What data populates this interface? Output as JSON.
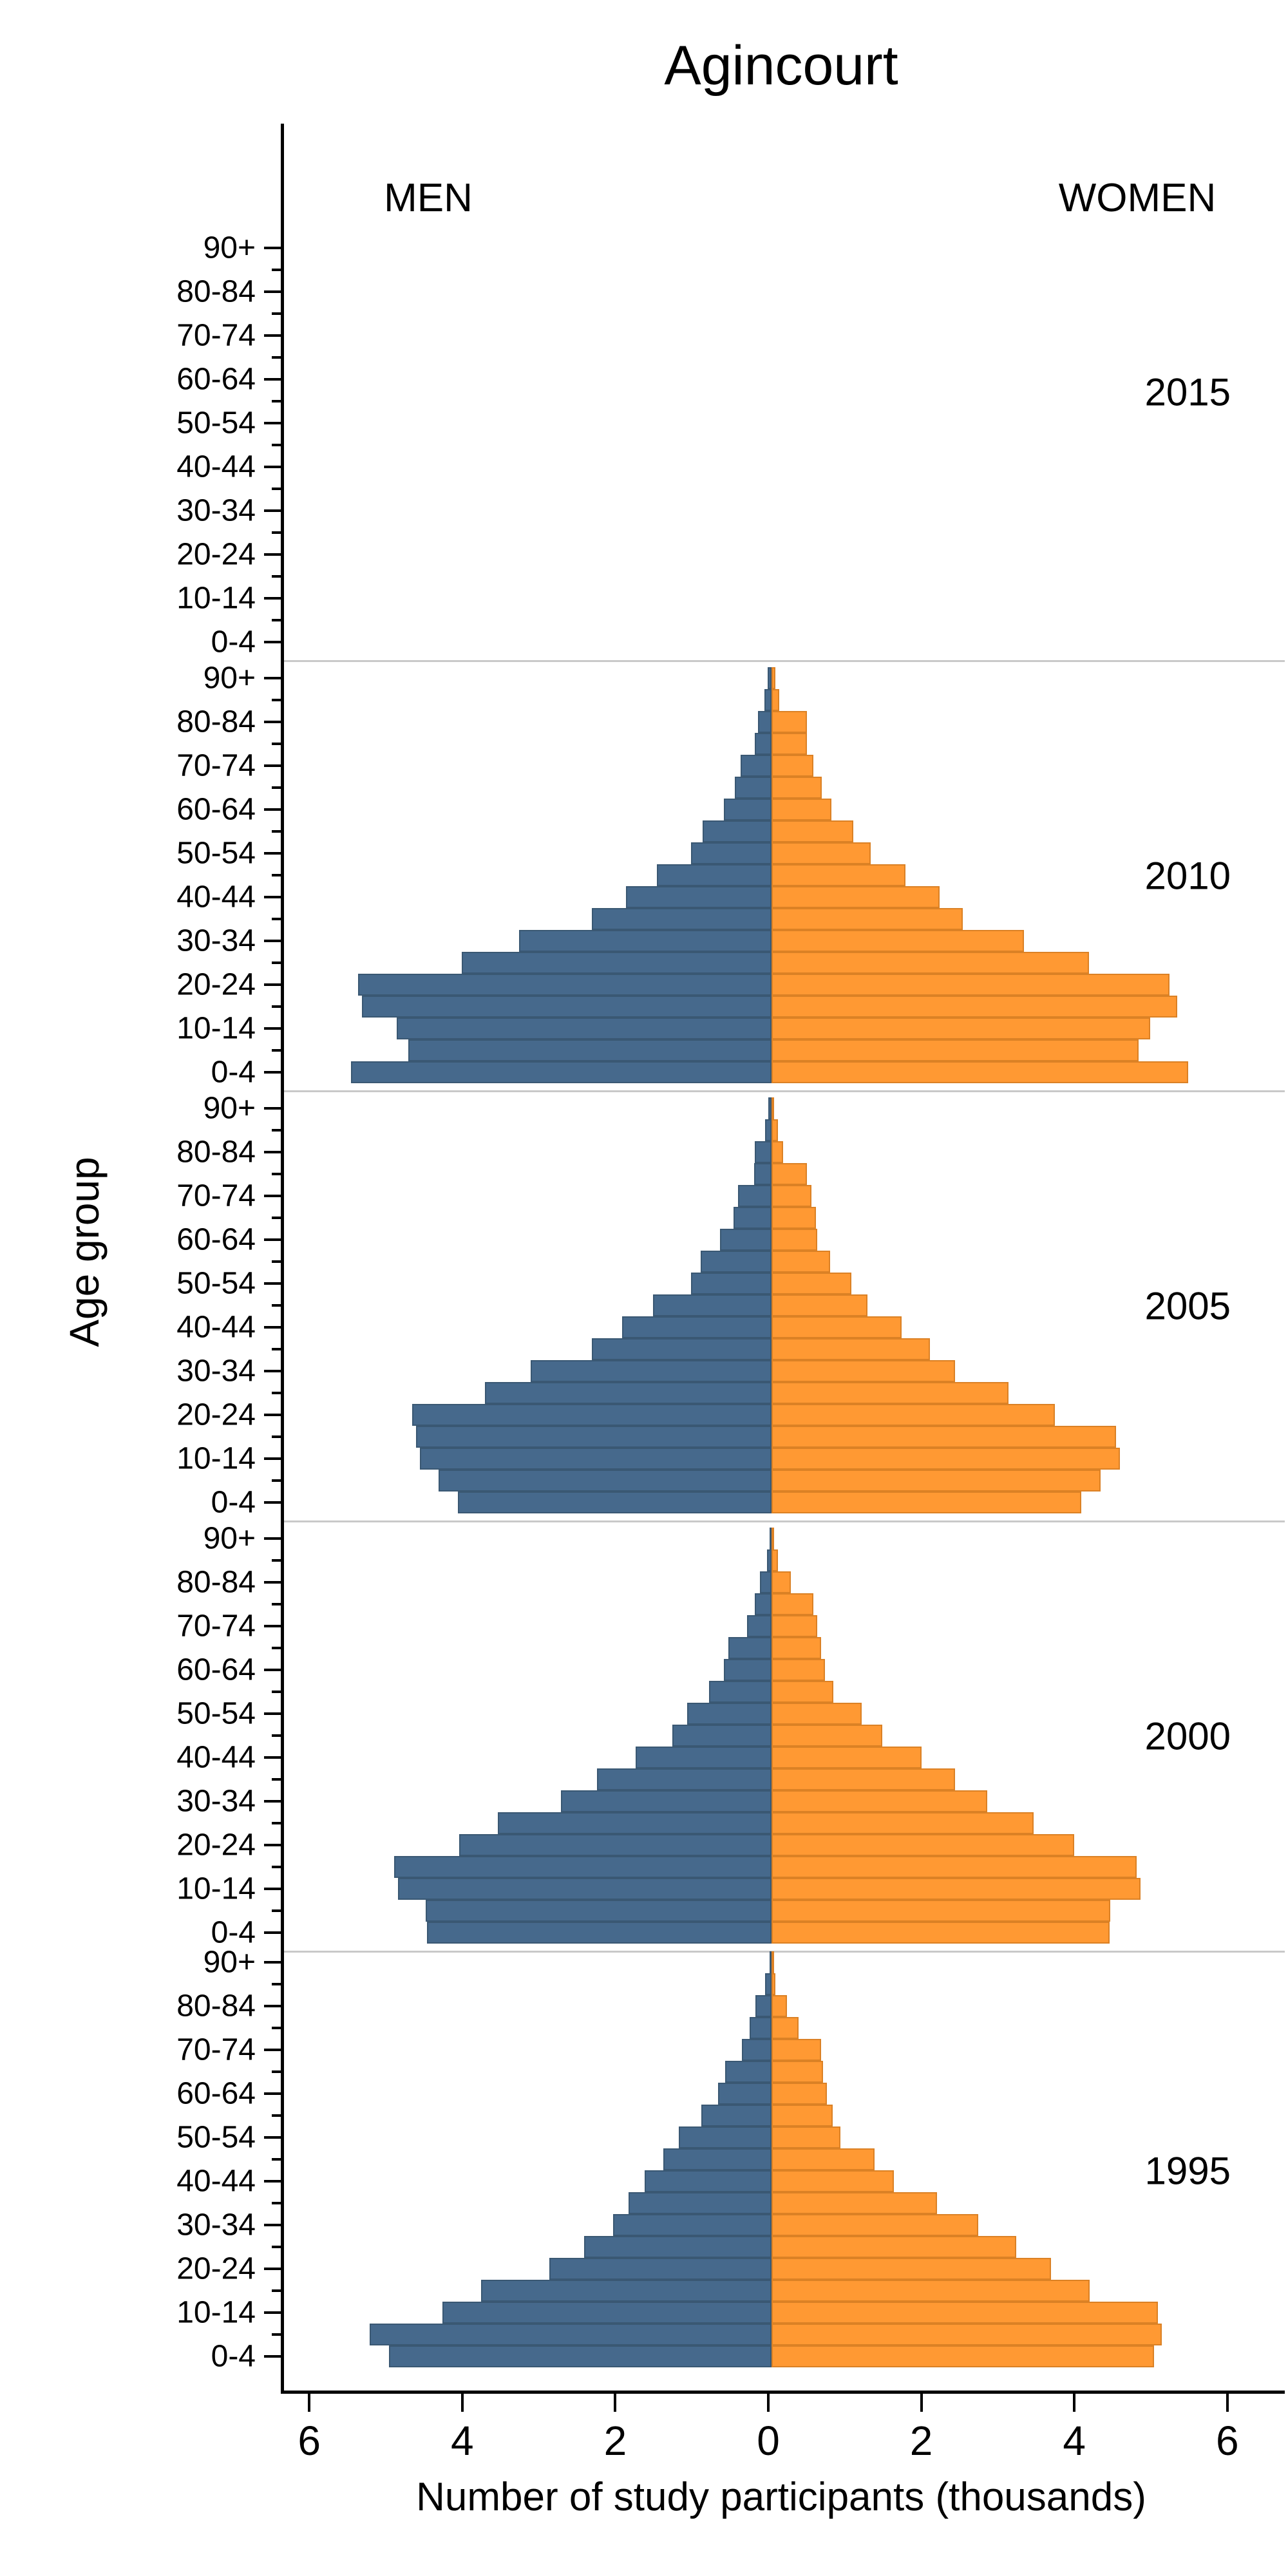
{
  "figure": {
    "title": "Agincourt",
    "y_axis_title": "Age group",
    "x_axis_title": "Number of study participants (thousands)",
    "left_header": "MEN",
    "right_header": "WOMEN"
  },
  "colors": {
    "men_fill": "#46698C",
    "men_border": "#3A5873",
    "women_fill": "#FF9933",
    "women_border": "#DB8125",
    "separator": "#C9C9C9",
    "axis": "#000000"
  },
  "chart_data": {
    "type": "bar",
    "subtype": "population_pyramid_small_multiples",
    "title": "Agincourt",
    "xlabel": "Number of study participants (thousands)",
    "ylabel": "Age group",
    "legend": {
      "left_side": "MEN",
      "right_side": "WOMEN"
    },
    "x_axis": {
      "ticks": [
        {
          "value": -6,
          "label": "6"
        },
        {
          "value": -4,
          "label": "4"
        },
        {
          "value": -2,
          "label": "2"
        },
        {
          "value": 0,
          "label": "0"
        },
        {
          "value": 2,
          "label": "2"
        },
        {
          "value": 4,
          "label": "4"
        },
        {
          "value": 6,
          "label": "6"
        }
      ],
      "units": "thousands of participants",
      "grid": false
    },
    "age_groups_order_note": "values listed from age 0-4 (bottom row) to 90+ (top row)",
    "age_groups": [
      "0-4",
      "5-9",
      "10-14",
      "15-19",
      "20-24",
      "25-29",
      "30-34",
      "35-39",
      "40-44",
      "45-49",
      "50-54",
      "55-59",
      "60-64",
      "65-69",
      "70-74",
      "75-79",
      "80-84",
      "85-89",
      "90+"
    ],
    "labeled_age_ticks": [
      "0-4",
      "10-14",
      "20-24",
      "30-34",
      "40-44",
      "50-54",
      "60-64",
      "70-74",
      "80-84",
      "90+"
    ],
    "panels": [
      {
        "year": "2015",
        "men": [
          0,
          0,
          0,
          0,
          0,
          0,
          0,
          0,
          0,
          0,
          0,
          0,
          0,
          0,
          0,
          0,
          0,
          0,
          0
        ],
        "women": [
          0,
          0,
          0,
          0,
          0,
          0,
          0,
          0,
          0,
          0,
          0,
          0,
          0,
          0,
          0,
          0,
          0,
          0,
          0
        ]
      },
      {
        "year": "2010",
        "men": [
          5.5,
          4.75,
          4.9,
          5.35,
          5.4,
          4.05,
          3.3,
          2.35,
          1.9,
          1.5,
          1.05,
          0.9,
          0.62,
          0.48,
          0.4,
          0.22,
          0.18,
          0.09,
          0.05
        ],
        "women": [
          5.45,
          4.8,
          4.95,
          5.3,
          5.2,
          4.15,
          3.3,
          2.5,
          2.2,
          1.75,
          1.3,
          1.07,
          0.78,
          0.66,
          0.55,
          0.46,
          0.46,
          0.1,
          0.05
        ]
      },
      {
        "year": "2005",
        "men": [
          4.1,
          4.35,
          4.6,
          4.65,
          4.7,
          3.75,
          3.15,
          2.35,
          1.95,
          1.55,
          1.05,
          0.93,
          0.67,
          0.5,
          0.44,
          0.23,
          0.22,
          0.08,
          0.04
        ],
        "women": [
          4.05,
          4.3,
          4.55,
          4.5,
          3.7,
          3.1,
          2.4,
          2.07,
          1.7,
          1.25,
          1.04,
          0.77,
          0.6,
          0.58,
          0.52,
          0.46,
          0.15,
          0.08,
          0.03
        ]
      },
      {
        "year": "2000",
        "men": [
          4.5,
          4.52,
          4.88,
          4.93,
          4.08,
          3.58,
          2.75,
          2.28,
          1.78,
          1.3,
          1.1,
          0.82,
          0.62,
          0.56,
          0.32,
          0.22,
          0.15,
          0.06,
          0.02
        ],
        "women": [
          4.42,
          4.43,
          4.82,
          4.77,
          3.96,
          3.43,
          2.82,
          2.4,
          1.96,
          1.45,
          1.18,
          0.81,
          0.7,
          0.65,
          0.6,
          0.55,
          0.25,
          0.08,
          0.02
        ]
      },
      {
        "year": "1995",
        "men": [
          5.0,
          5.25,
          4.3,
          3.8,
          2.9,
          2.45,
          2.07,
          1.87,
          1.66,
          1.41,
          1.21,
          0.92,
          0.7,
          0.61,
          0.39,
          0.29,
          0.21,
          0.08,
          0.02
        ],
        "women": [
          5.0,
          5.1,
          5.05,
          4.16,
          3.65,
          3.2,
          2.7,
          2.16,
          1.6,
          1.35,
          0.9,
          0.8,
          0.72,
          0.67,
          0.65,
          0.35,
          0.2,
          0.05,
          0.02
        ]
      }
    ]
  }
}
